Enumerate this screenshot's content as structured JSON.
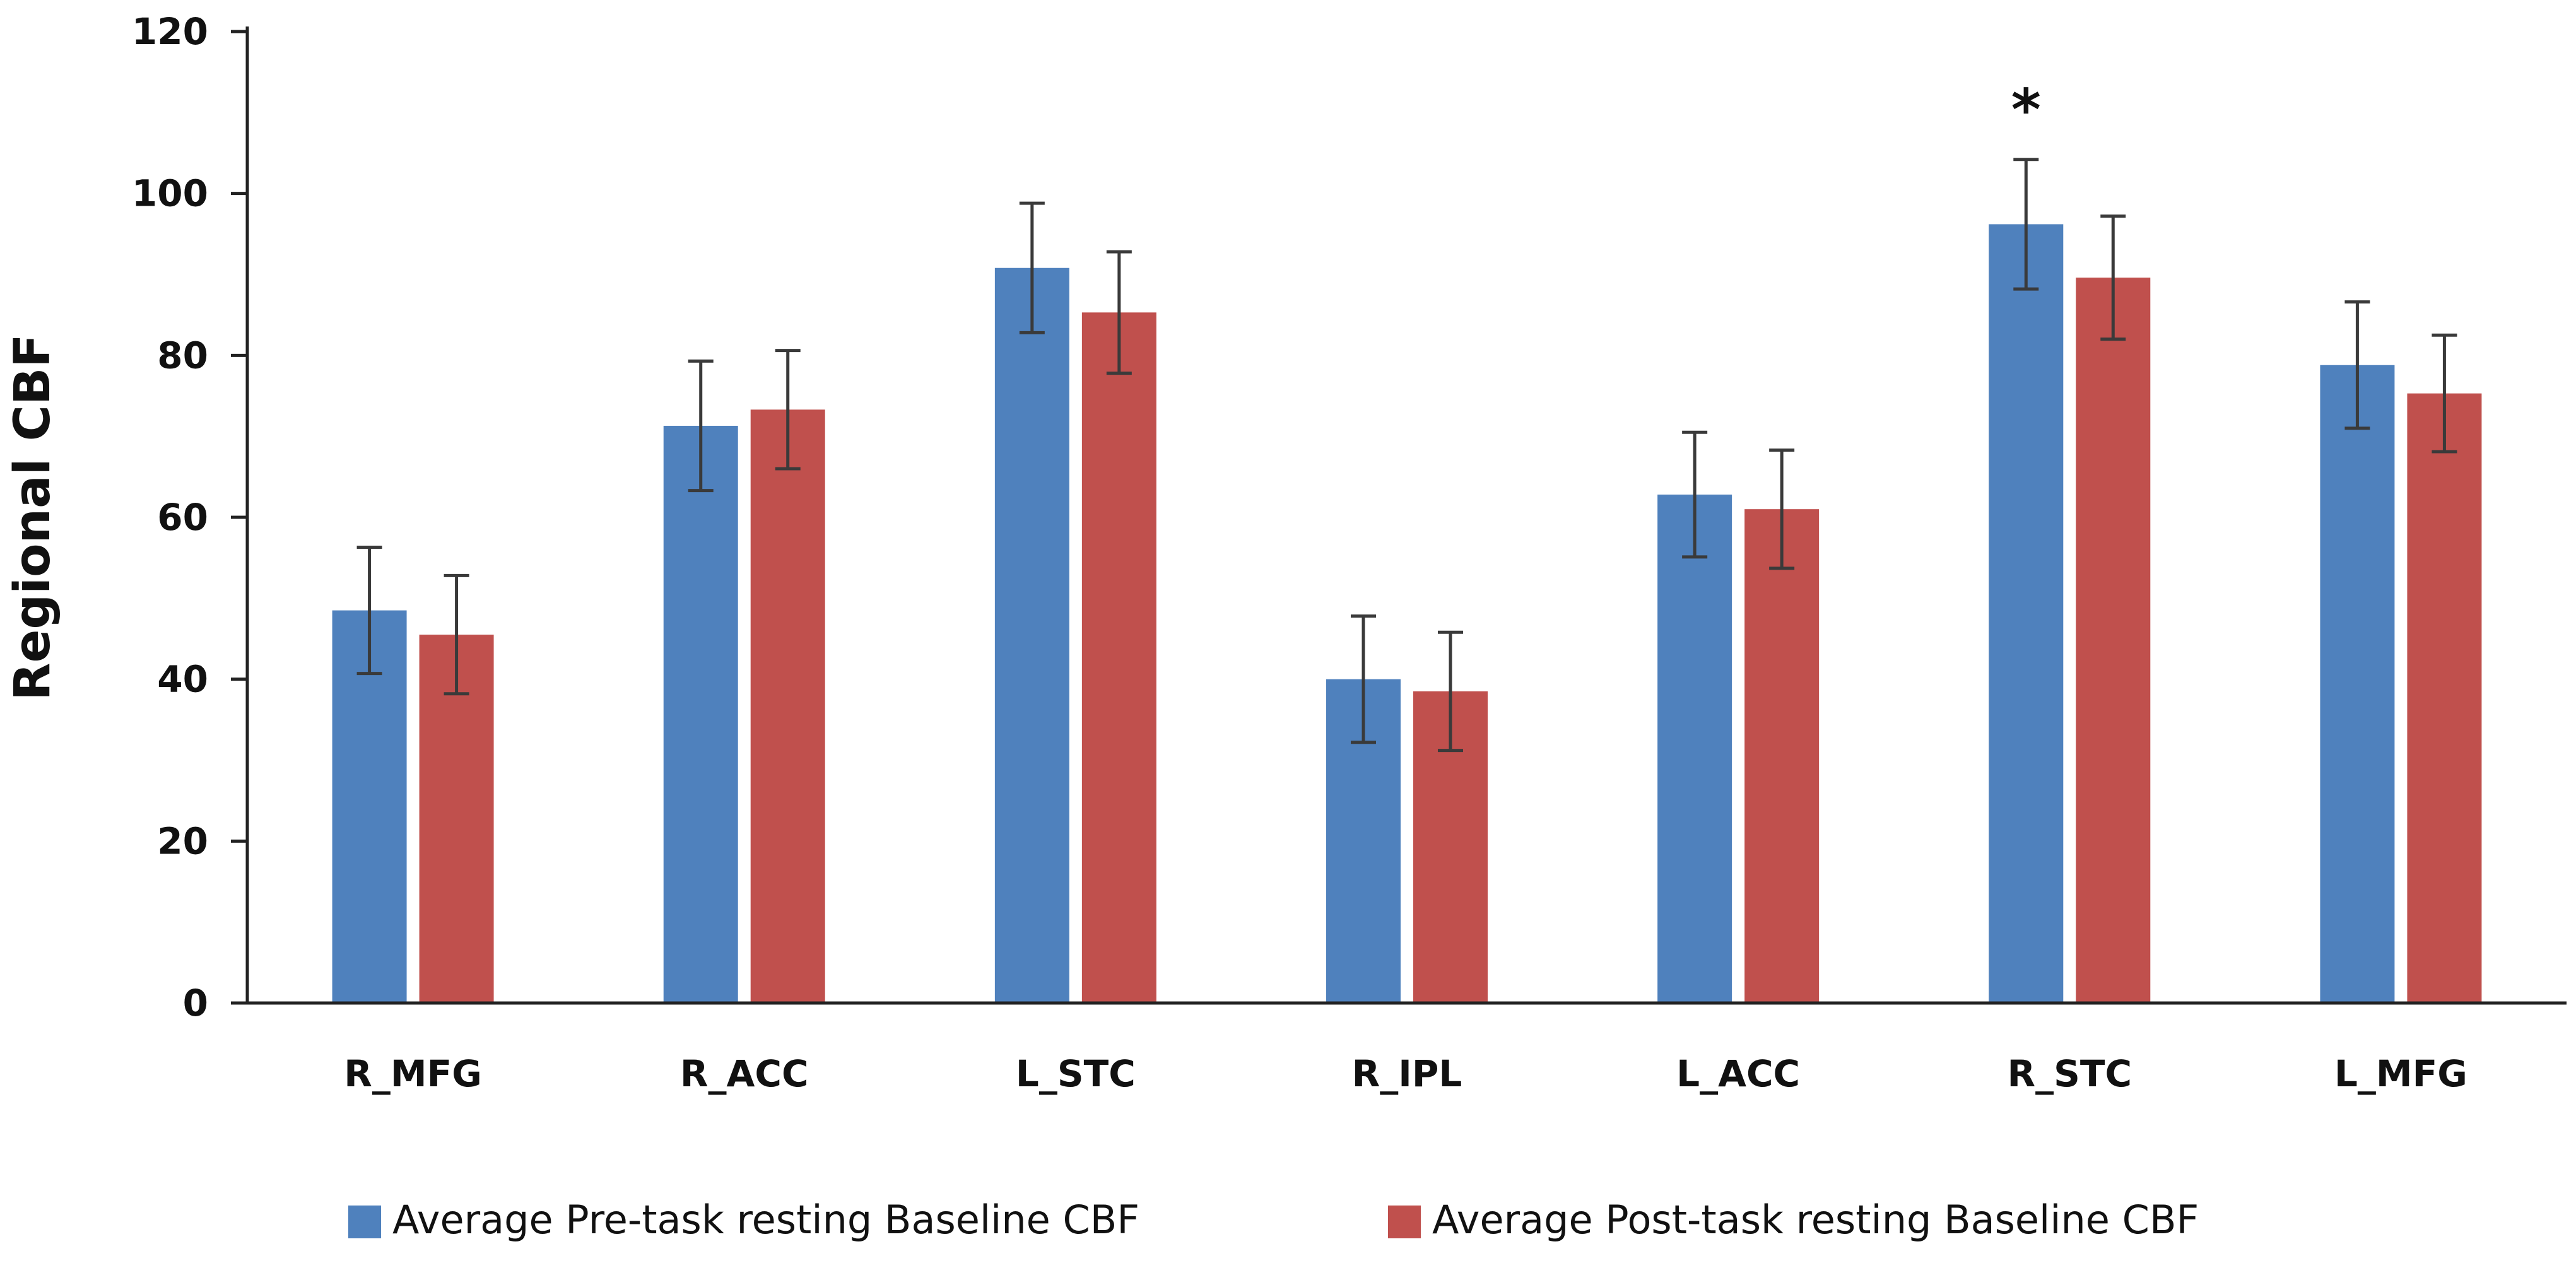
{
  "chart_data": {
    "type": "bar",
    "title": "",
    "xlabel": "",
    "ylabel": "Regional CBF",
    "ylim": [
      0,
      120
    ],
    "yticks": [
      "0",
      "20",
      "40",
      "60",
      "80",
      "100",
      "120"
    ],
    "categories": [
      "R_MFG",
      "R_ACC",
      "L_STC",
      "R_IPL",
      "L_ACC",
      "R_STC",
      "L_MFG"
    ],
    "series": [
      {
        "name": "Average Pre-task resting Baseline CBF",
        "color": "#4F81BD",
        "values": [
          48.5,
          71.3,
          90.8,
          40.0,
          62.8,
          96.2,
          78.8
        ],
        "error": [
          7.8,
          8.0,
          8.0,
          7.8,
          7.7,
          8.0,
          7.8
        ]
      },
      {
        "name": "Average Post-task resting Baseline CBF",
        "color": "#C0504D",
        "values": [
          45.5,
          73.3,
          85.3,
          38.5,
          61.0,
          89.6,
          75.3
        ],
        "error": [
          7.3,
          7.3,
          7.5,
          7.3,
          7.3,
          7.6,
          7.2
        ]
      }
    ],
    "annotations": [
      {
        "text": "*",
        "category": "R_STC"
      }
    ],
    "legend": "bottom",
    "grid": false
  }
}
